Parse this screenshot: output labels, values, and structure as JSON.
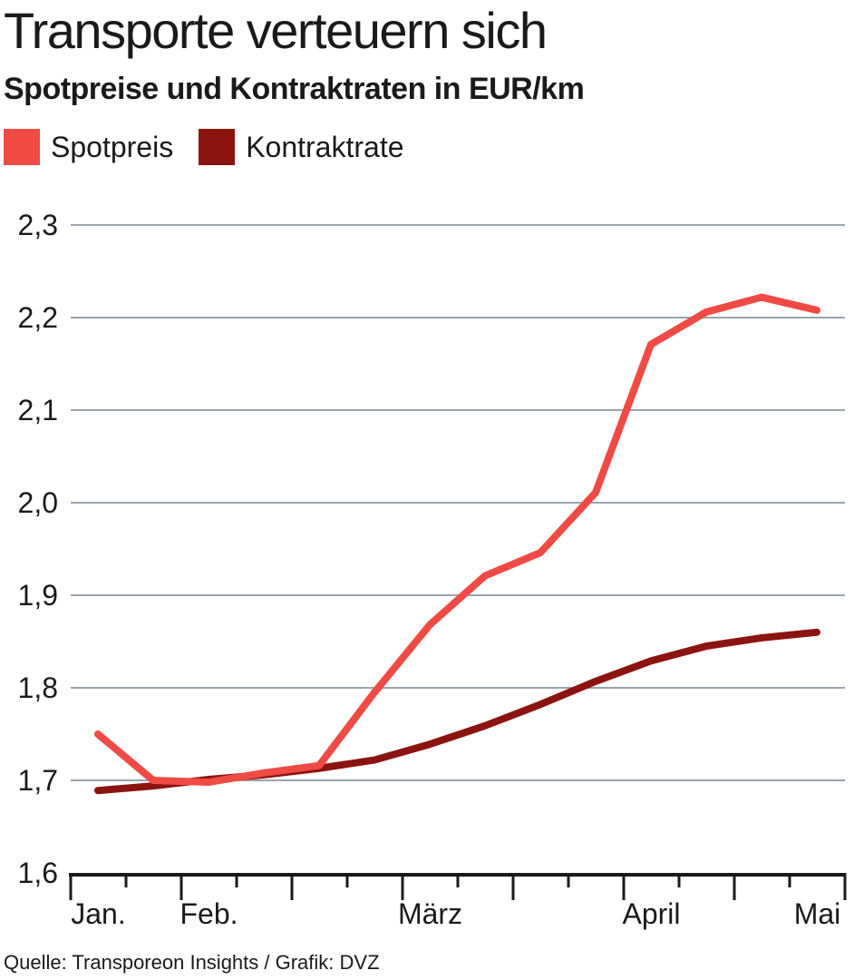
{
  "header": {
    "title": "Transporte verteuern sich",
    "subtitle": "Spotpreise und Kontraktraten in EUR/km"
  },
  "legend": {
    "items": [
      {
        "label": "Spotpreis",
        "color": "#f04a44"
      },
      {
        "label": "Kontraktrate",
        "color": "#8b1410"
      }
    ]
  },
  "source": "Quelle: Transporeon Insights / Grafik: DVZ",
  "chart_data": {
    "type": "line",
    "title": "Transporte verteuern sich",
    "subtitle": "Spotpreise und Kontraktraten in EUR/km",
    "xlabel": "",
    "ylabel": "",
    "ylim": [
      1.6,
      2.3
    ],
    "yticks": [
      "1,6",
      "1,7",
      "1,8",
      "1,9",
      "2,0",
      "2,1",
      "2,2",
      "2,3"
    ],
    "ytick_values": [
      1.6,
      1.7,
      1.8,
      1.9,
      2.0,
      2.1,
      2.2,
      2.3
    ],
    "xtick_labels": [
      "Jan.",
      "Feb.",
      "März",
      "April",
      "Mai"
    ],
    "xtick_label_weeks": [
      0.5,
      2.5,
      6.5,
      10.5,
      13.5
    ],
    "week_tick_count": 15,
    "grid": true,
    "legend_position": "top-left",
    "series": [
      {
        "name": "Spotpreis",
        "color": "#f04a44",
        "x": [
          0.5,
          1.5,
          2.5,
          3.5,
          4.5,
          5.5,
          6.5,
          7.5,
          8.5,
          9.5,
          10.5,
          11.5,
          12.5,
          13.5,
          14.5
        ],
        "values": [
          1.75,
          1.7,
          1.698,
          1.708,
          1.716,
          1.795,
          1.868,
          1.921,
          1.946,
          2.011,
          2.171,
          2.206,
          2.222,
          2.208,
          null
        ]
      },
      {
        "name": "Kontraktrate",
        "color": "#8b1410",
        "x": [
          0.5,
          1.5,
          2.5,
          3.5,
          4.5,
          5.5,
          6.5,
          7.5,
          8.5,
          9.5,
          10.5,
          11.5,
          12.5,
          13.5,
          14.5
        ],
        "values": [
          1.689,
          1.694,
          1.701,
          1.706,
          1.713,
          1.722,
          1.739,
          1.759,
          1.782,
          1.807,
          1.829,
          1.845,
          1.854,
          1.86,
          null
        ]
      }
    ]
  }
}
